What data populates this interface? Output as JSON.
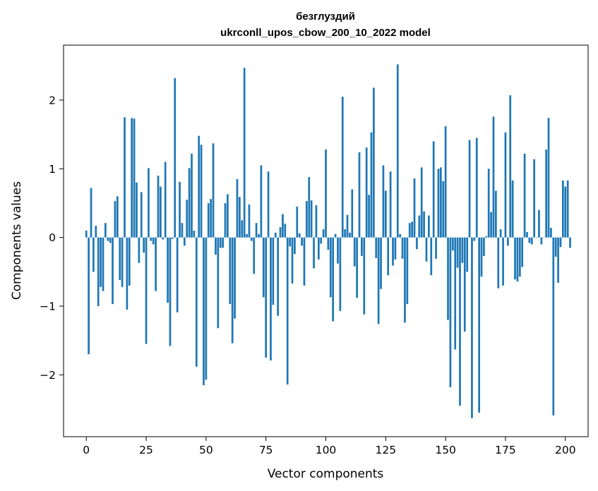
{
  "chart_data": {
    "type": "bar",
    "title_line1": "безглуздий",
    "title_line2": "ukrconll_upos_cbow_200_10_2022 model",
    "xlabel": "Vector components",
    "ylabel": "Components values",
    "xlim": [
      -9.5,
      209.5
    ],
    "ylim": [
      -2.9,
      2.8
    ],
    "xticks": [
      0,
      25,
      50,
      75,
      100,
      125,
      150,
      175,
      200
    ],
    "yticks": [
      -2,
      -1,
      0,
      1,
      2
    ],
    "xtick_labels": [
      "0",
      "25",
      "50",
      "75",
      "100",
      "125",
      "150",
      "175",
      "200"
    ],
    "ytick_labels": [
      "−2",
      "−1",
      "0",
      "1",
      "2"
    ],
    "bar_color": "#1f77b4",
    "values": [
      0.1,
      -1.7,
      0.72,
      -0.5,
      0.17,
      -1.0,
      -0.72,
      -0.78,
      0.21,
      -0.05,
      -0.08,
      -0.97,
      0.53,
      0.6,
      -0.62,
      -0.72,
      1.75,
      -1.05,
      -0.7,
      1.74,
      1.73,
      0.8,
      -0.37,
      0.66,
      -0.22,
      -1.55,
      1.01,
      -0.05,
      -0.1,
      -0.78,
      0.9,
      0.74,
      -0.03,
      1.1,
      -0.95,
      -1.58,
      -0.02,
      2.32,
      -1.09,
      0.81,
      0.21,
      -0.12,
      0.55,
      1.01,
      1.22,
      0.1,
      -1.88,
      1.48,
      1.35,
      -2.15,
      -2.07,
      0.5,
      0.56,
      1.37,
      -0.25,
      -1.32,
      -0.15,
      -0.15,
      0.5,
      0.63,
      -0.97,
      -1.54,
      -1.18,
      0.85,
      0.59,
      0.25,
      2.47,
      0.05,
      0.48,
      -0.05,
      -0.53,
      0.21,
      0.05,
      1.05,
      -0.87,
      -1.75,
      0.96,
      -1.79,
      -0.98,
      0.07,
      -1.14,
      0.15,
      0.34,
      0.2,
      -2.14,
      -0.13,
      -0.67,
      -0.24,
      0.45,
      0.06,
      -0.12,
      -0.7,
      0.53,
      0.88,
      0.54,
      -0.45,
      0.47,
      -0.32,
      -0.09,
      0.12,
      1.28,
      -0.18,
      -0.87,
      -1.22,
      0.05,
      -0.38,
      -1.07,
      2.05,
      0.12,
      0.33,
      0.07,
      0.7,
      -0.42,
      -0.88,
      1.24,
      -0.27,
      -1.12,
      1.31,
      0.62,
      1.53,
      2.18,
      -0.3,
      -1.26,
      -0.75,
      1.05,
      0.68,
      -0.55,
      0.96,
      -0.41,
      -0.32,
      2.52,
      0.05,
      -0.31,
      -1.24,
      -0.97,
      0.21,
      0.23,
      0.86,
      -0.17,
      0.32,
      1.02,
      0.38,
      -0.35,
      0.32,
      -0.55,
      1.4,
      -0.31,
      1.0,
      1.02,
      0.82,
      1.62,
      -1.2,
      -2.18,
      -0.19,
      -1.63,
      -0.44,
      -2.45,
      -0.37,
      -1.37,
      -0.5,
      1.42,
      -2.63,
      -0.05,
      1.45,
      -2.55,
      -0.57,
      -0.27,
      0.02,
      1.0,
      0.37,
      1.76,
      0.68,
      -0.74,
      0.12,
      -0.7,
      1.53,
      -0.12,
      2.07,
      0.83,
      -0.61,
      -0.64,
      -0.57,
      -0.43,
      1.22,
      0.08,
      -0.08,
      -0.1,
      1.14,
      0.0,
      0.4,
      -0.1,
      0.0,
      1.28,
      1.74,
      0.14,
      -2.59,
      -0.28,
      -0.66,
      -0.14,
      0.83,
      0.74,
      0.83,
      -0.15
    ]
  }
}
